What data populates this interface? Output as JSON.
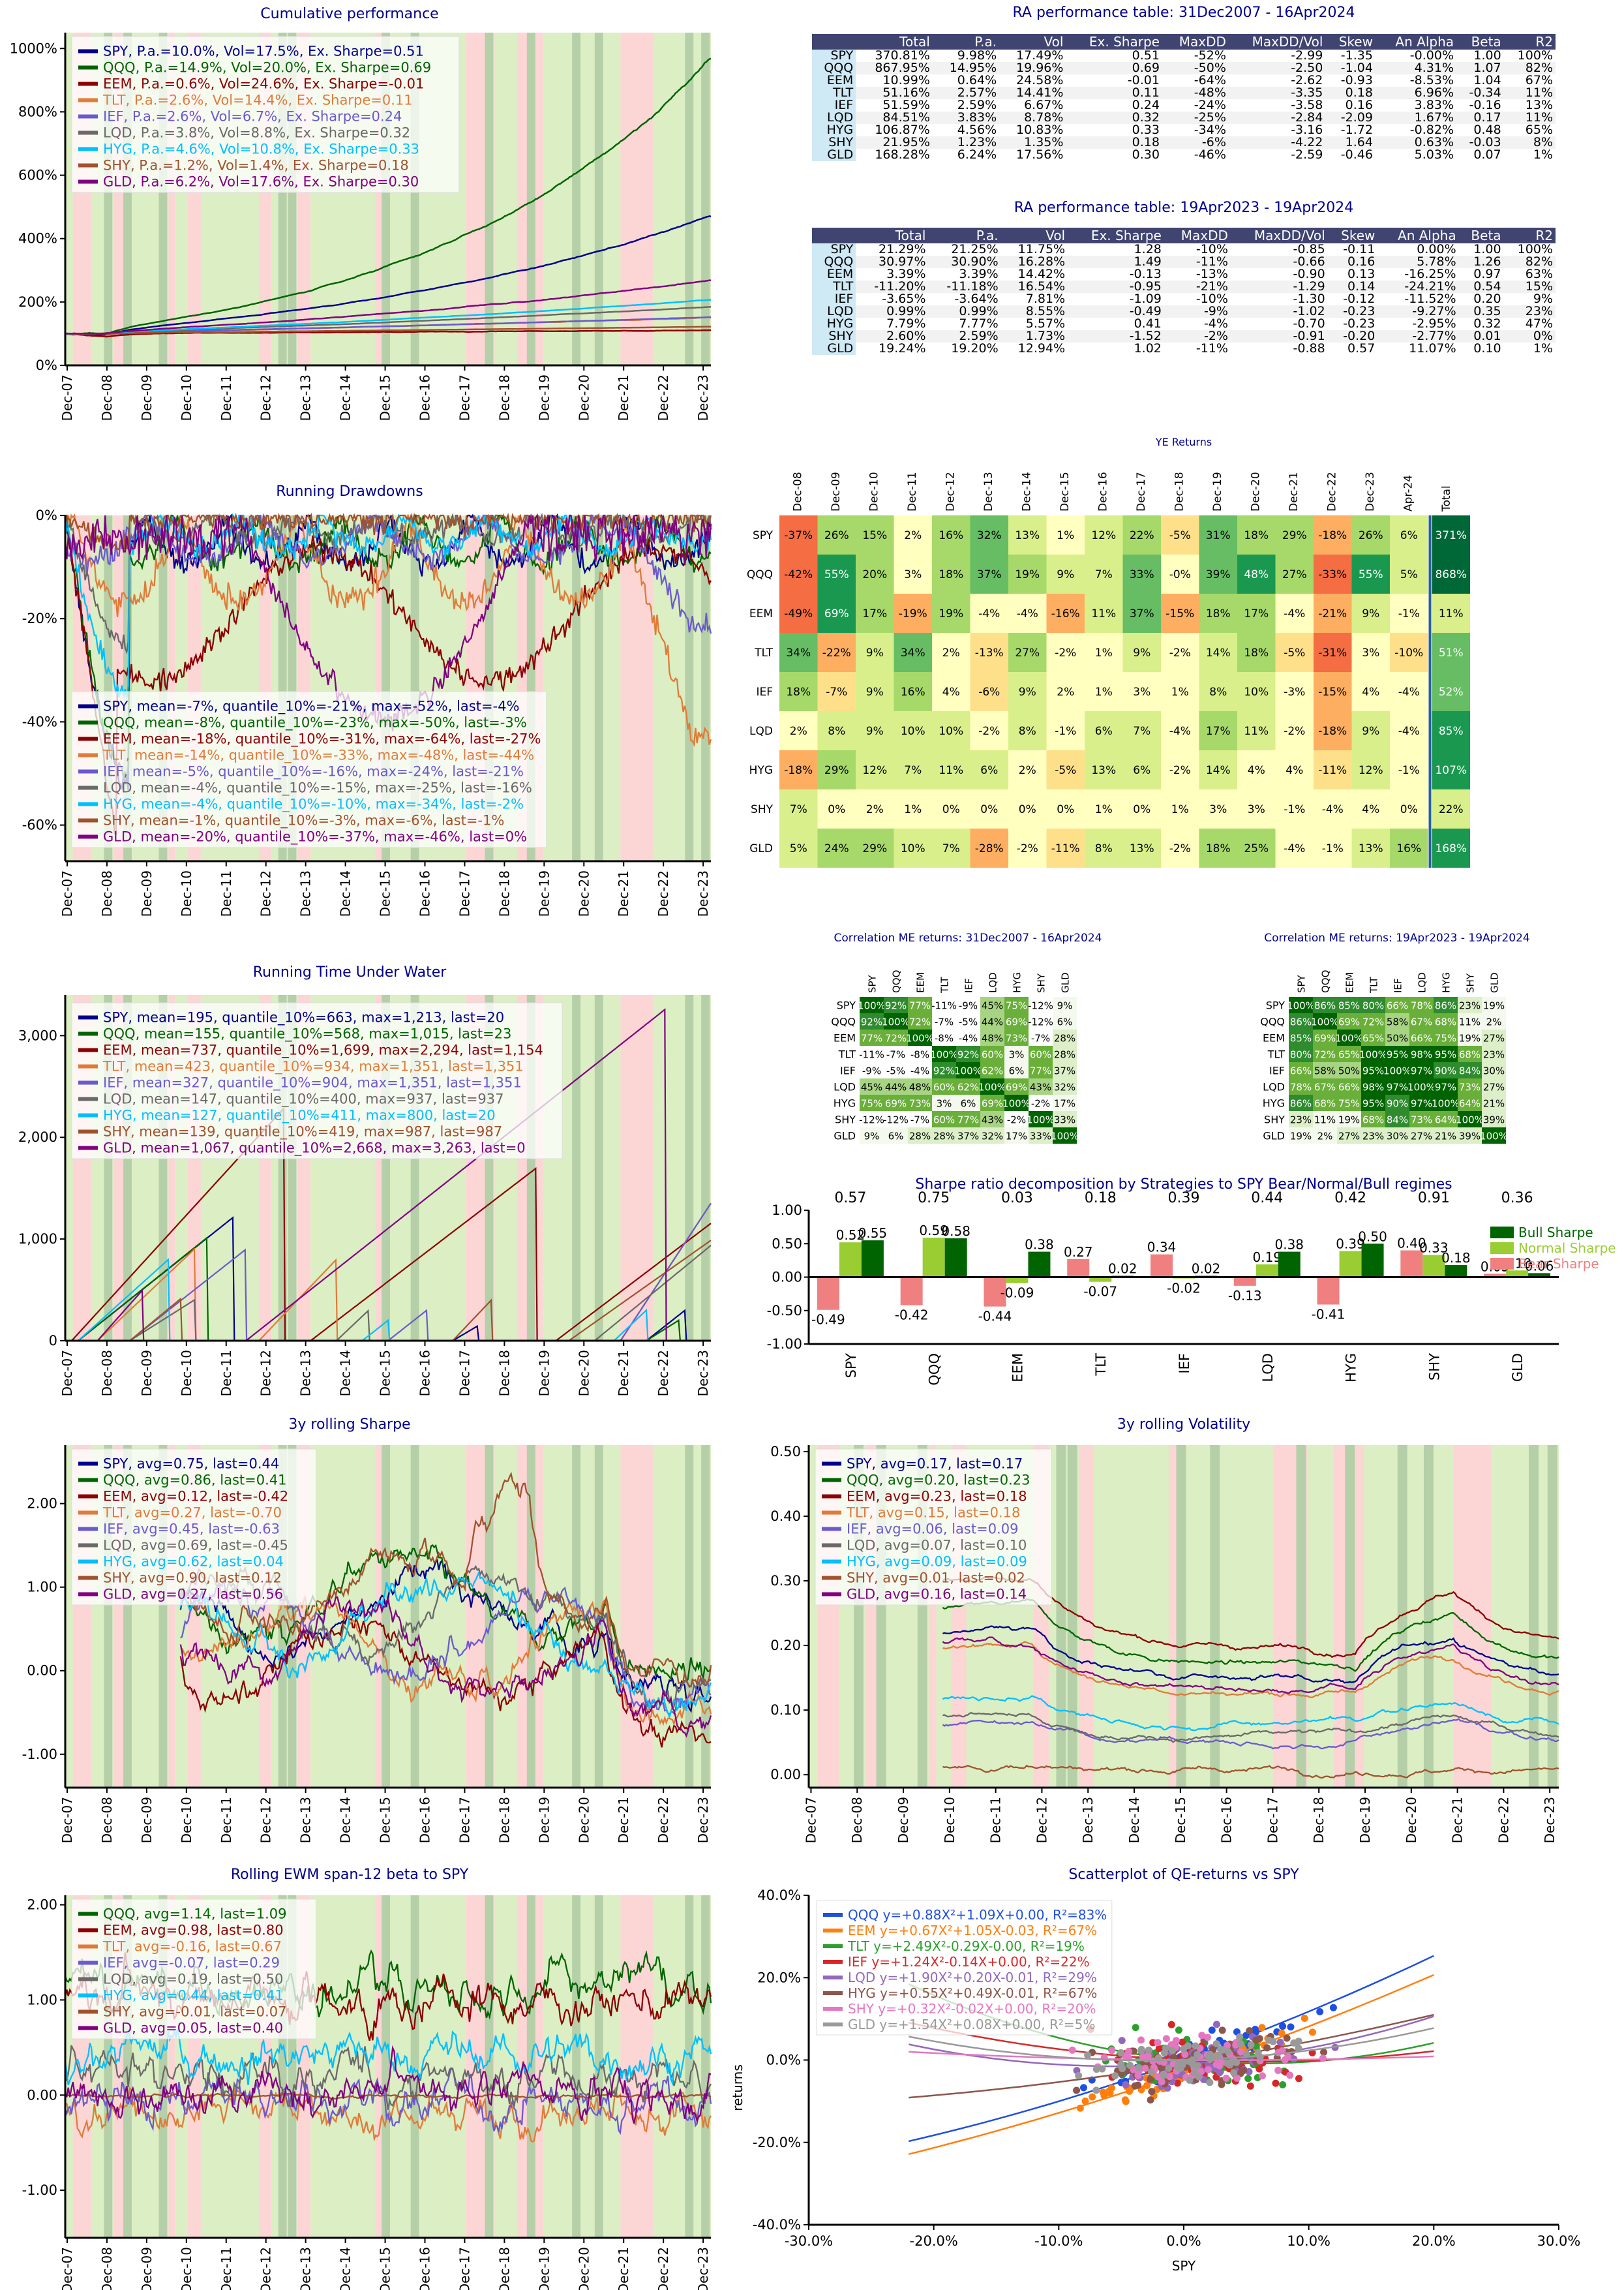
{
  "assets": [
    "SPY",
    "QQQ",
    "EEM",
    "TLT",
    "IEF",
    "LQD",
    "HYG",
    "SHY",
    "GLD"
  ],
  "colors": [
    "#00008b",
    "#006400",
    "#8b0000",
    "#e07b39",
    "#6a5acd",
    "#696969",
    "#00bfff",
    "#a0522d",
    "#800080"
  ],
  "time_ticks": [
    "Dec-07",
    "Dec-08",
    "Dec-09",
    "Dec-10",
    "Dec-11",
    "Dec-12",
    "Dec-13",
    "Dec-14",
    "Dec-15",
    "Dec-16",
    "Dec-17",
    "Dec-18",
    "Dec-19",
    "Dec-20",
    "Dec-21",
    "Dec-22",
    "Dec-23"
  ],
  "cumulative": {
    "title": "Cumulative performance",
    "yticks": [
      "0%",
      "200%",
      "400%",
      "600%",
      "800%",
      "1000%"
    ],
    "ylim": [
      0,
      1050
    ],
    "legend": [
      "SPY, P.a.=10.0%, Vol=17.5%, Ex. Sharpe=0.51",
      "QQQ, P.a.=14.9%, Vol=20.0%, Ex. Sharpe=0.69",
      "EEM, P.a.=0.6%, Vol=24.6%, Ex. Sharpe=-0.01",
      "TLT, P.a.=2.6%, Vol=14.4%, Ex. Sharpe=0.11",
      "IEF, P.a.=2.6%, Vol=6.7%, Ex. Sharpe=0.24",
      "LQD, P.a.=3.8%, Vol=8.8%, Ex. Sharpe=0.32",
      "HYG, P.a.=4.6%, Vol=10.8%, Ex. Sharpe=0.33",
      "SHY, P.a.=1.2%, Vol=1.4%, Ex. Sharpe=0.18",
      "GLD, P.a.=6.2%, Vol=17.6%, Ex. Sharpe=0.30"
    ],
    "final_values": [
      470,
      968,
      111,
      151,
      152,
      185,
      207,
      122,
      268
    ]
  },
  "table1": {
    "title": "RA performance table: 31Dec2007 - 16Apr2024",
    "headers": [
      "",
      "Total",
      "P.a.",
      "Vol",
      "Ex. Sharpe",
      "MaxDD",
      "MaxDD/Vol",
      "Skew",
      "An Alpha",
      "Beta",
      "R2"
    ],
    "rows": [
      [
        "SPY",
        "370.81%",
        "9.98%",
        "17.49%",
        "0.51",
        "-52%",
        "-2.99",
        "-1.35",
        "-0.00%",
        "1.00",
        "100%"
      ],
      [
        "QQQ",
        "867.95%",
        "14.95%",
        "19.96%",
        "0.69",
        "-50%",
        "-2.50",
        "-1.04",
        "4.31%",
        "1.07",
        "82%"
      ],
      [
        "EEM",
        "10.99%",
        "0.64%",
        "24.58%",
        "-0.01",
        "-64%",
        "-2.62",
        "-0.93",
        "-8.53%",
        "1.04",
        "67%"
      ],
      [
        "TLT",
        "51.16%",
        "2.57%",
        "14.41%",
        "0.11",
        "-48%",
        "-3.35",
        "0.18",
        "6.96%",
        "-0.34",
        "11%"
      ],
      [
        "IEF",
        "51.59%",
        "2.59%",
        "6.67%",
        "0.24",
        "-24%",
        "-3.58",
        "0.16",
        "3.83%",
        "-0.16",
        "13%"
      ],
      [
        "LQD",
        "84.51%",
        "3.83%",
        "8.78%",
        "0.32",
        "-25%",
        "-2.84",
        "-2.09",
        "1.67%",
        "0.17",
        "11%"
      ],
      [
        "HYG",
        "106.87%",
        "4.56%",
        "10.83%",
        "0.33",
        "-34%",
        "-3.16",
        "-1.72",
        "-0.82%",
        "0.48",
        "65%"
      ],
      [
        "SHY",
        "21.95%",
        "1.23%",
        "1.35%",
        "0.18",
        "-6%",
        "-4.22",
        "1.64",
        "0.63%",
        "-0.03",
        "8%"
      ],
      [
        "GLD",
        "168.28%",
        "6.24%",
        "17.56%",
        "0.30",
        "-46%",
        "-2.59",
        "-0.46",
        "5.03%",
        "0.07",
        "1%"
      ]
    ]
  },
  "table2": {
    "title": "RA performance table: 19Apr2023 - 19Apr2024",
    "headers": [
      "",
      "Total",
      "P.a.",
      "Vol",
      "Ex. Sharpe",
      "MaxDD",
      "MaxDD/Vol",
      "Skew",
      "An Alpha",
      "Beta",
      "R2"
    ],
    "rows": [
      [
        "SPY",
        "21.29%",
        "21.25%",
        "11.75%",
        "1.28",
        "-10%",
        "-0.85",
        "-0.11",
        "0.00%",
        "1.00",
        "100%"
      ],
      [
        "QQQ",
        "30.97%",
        "30.90%",
        "16.28%",
        "1.49",
        "-11%",
        "-0.66",
        "0.16",
        "5.78%",
        "1.26",
        "82%"
      ],
      [
        "EEM",
        "3.39%",
        "3.39%",
        "14.42%",
        "-0.13",
        "-13%",
        "-0.90",
        "0.13",
        "-16.25%",
        "0.97",
        "63%"
      ],
      [
        "TLT",
        "-11.20%",
        "-11.18%",
        "16.54%",
        "-0.95",
        "-21%",
        "-1.29",
        "0.14",
        "-24.21%",
        "0.54",
        "15%"
      ],
      [
        "IEF",
        "-3.65%",
        "-3.64%",
        "7.81%",
        "-1.09",
        "-10%",
        "-1.30",
        "-0.12",
        "-11.52%",
        "0.20",
        "9%"
      ],
      [
        "LQD",
        "0.99%",
        "0.99%",
        "8.55%",
        "-0.49",
        "-9%",
        "-1.02",
        "-0.23",
        "-9.27%",
        "0.35",
        "23%"
      ],
      [
        "HYG",
        "7.79%",
        "7.77%",
        "5.57%",
        "0.41",
        "-4%",
        "-0.70",
        "-0.23",
        "-2.95%",
        "0.32",
        "47%"
      ],
      [
        "SHY",
        "2.60%",
        "2.59%",
        "1.73%",
        "-1.52",
        "-2%",
        "-0.91",
        "-0.20",
        "-2.77%",
        "0.01",
        "0%"
      ],
      [
        "GLD",
        "19.24%",
        "19.20%",
        "12.94%",
        "1.02",
        "-11%",
        "-0.88",
        "0.57",
        "11.07%",
        "0.10",
        "1%"
      ]
    ]
  },
  "drawdowns": {
    "title": "Running Drawdowns",
    "yticks": [
      "0%",
      "-20%",
      "-40%",
      "-60%"
    ],
    "ylim": [
      -67,
      0
    ],
    "legend": [
      "SPY, mean=-7%, quantile_10%=-21%, max=-52%, last=-4%",
      "QQQ, mean=-8%, quantile_10%=-23%, max=-50%, last=-3%",
      "EEM, mean=-18%, quantile_10%=-31%, max=-64%, last=-27%",
      "TLT, mean=-14%, quantile_10%=-33%, max=-48%, last=-44%",
      "IEF, mean=-5%, quantile_10%=-16%, max=-24%, last=-21%",
      "LQD, mean=-4%, quantile_10%=-15%, max=-25%, last=-16%",
      "HYG, mean=-4%, quantile_10%=-10%, max=-34%, last=-2%",
      "SHY, mean=-1%, quantile_10%=-3%, max=-6%, last=-1%",
      "GLD, mean=-20%, quantile_10%=-37%, max=-46%, last=0%"
    ]
  },
  "ye_returns": {
    "title": "YE Returns",
    "columns": [
      "Dec-08",
      "Dec-09",
      "Dec-10",
      "Dec-11",
      "Dec-12",
      "Dec-13",
      "Dec-14",
      "Dec-15",
      "Dec-16",
      "Dec-17",
      "Dec-18",
      "Dec-19",
      "Dec-20",
      "Dec-21",
      "Dec-22",
      "Dec-23",
      "Apr-24",
      "Total"
    ],
    "rows": [
      [
        "SPY",
        "-37%",
        "26%",
        "15%",
        "2%",
        "16%",
        "32%",
        "13%",
        "1%",
        "12%",
        "22%",
        "-5%",
        "31%",
        "18%",
        "29%",
        "-18%",
        "26%",
        "6%",
        "371%"
      ],
      [
        "QQQ",
        "-42%",
        "55%",
        "20%",
        "3%",
        "18%",
        "37%",
        "19%",
        "9%",
        "7%",
        "33%",
        "-0%",
        "39%",
        "48%",
        "27%",
        "-33%",
        "55%",
        "5%",
        "868%"
      ],
      [
        "EEM",
        "-49%",
        "69%",
        "17%",
        "-19%",
        "19%",
        "-4%",
        "-4%",
        "-16%",
        "11%",
        "37%",
        "-15%",
        "18%",
        "17%",
        "-4%",
        "-21%",
        "9%",
        "-1%",
        "11%"
      ],
      [
        "TLT",
        "34%",
        "-22%",
        "9%",
        "34%",
        "2%",
        "-13%",
        "27%",
        "-2%",
        "1%",
        "9%",
        "-2%",
        "14%",
        "18%",
        "-5%",
        "-31%",
        "3%",
        "-10%",
        "51%"
      ],
      [
        "IEF",
        "18%",
        "-7%",
        "9%",
        "16%",
        "4%",
        "-6%",
        "9%",
        "2%",
        "1%",
        "3%",
        "1%",
        "8%",
        "10%",
        "-3%",
        "-15%",
        "4%",
        "-4%",
        "52%"
      ],
      [
        "LQD",
        "2%",
        "8%",
        "9%",
        "10%",
        "10%",
        "-2%",
        "8%",
        "-1%",
        "6%",
        "7%",
        "-4%",
        "17%",
        "11%",
        "-2%",
        "-18%",
        "9%",
        "-4%",
        "85%"
      ],
      [
        "HYG",
        "-18%",
        "29%",
        "12%",
        "7%",
        "11%",
        "6%",
        "2%",
        "-5%",
        "13%",
        "6%",
        "-2%",
        "14%",
        "4%",
        "4%",
        "-11%",
        "12%",
        "-1%",
        "107%"
      ],
      [
        "SHY",
        "7%",
        "0%",
        "2%",
        "1%",
        "0%",
        "0%",
        "0%",
        "0%",
        "1%",
        "0%",
        "1%",
        "3%",
        "3%",
        "-1%",
        "-4%",
        "4%",
        "0%",
        "22%"
      ],
      [
        "GLD",
        "5%",
        "24%",
        "29%",
        "10%",
        "7%",
        "-28%",
        "-2%",
        "-11%",
        "8%",
        "13%",
        "-2%",
        "18%",
        "25%",
        "-4%",
        "-1%",
        "13%",
        "16%",
        "168%"
      ]
    ]
  },
  "tuw": {
    "title": "Running Time Under Water",
    "yticks": [
      "0",
      "1,000",
      "2,000",
      "3,000"
    ],
    "ylim": [
      0,
      3400
    ],
    "legend": [
      "SPY, mean=195, quantile_10%=663, max=1,213, last=20",
      "QQQ, mean=155, quantile_10%=568, max=1,015, last=23",
      "EEM, mean=737, quantile_10%=1,699, max=2,294, last=1,154",
      "TLT, mean=423, quantile_10%=934, max=1,351, last=1,351",
      "IEF, mean=327, quantile_10%=904, max=1,351, last=1,351",
      "LQD, mean=147, quantile_10%=400, max=937, last=937",
      "HYG, mean=127, quantile_10%=411, max=800, last=20",
      "SHY, mean=139, quantile_10%=419, max=987, last=987",
      "GLD, mean=1,067, quantile_10%=2,668, max=3,263, last=0"
    ]
  },
  "corr1": {
    "title": "Correlation ME returns: 31Dec2007 - 16Apr2024",
    "matrix": [
      [
        "100%",
        "92%",
        "77%",
        "-11%",
        "-9%",
        "45%",
        "75%",
        "-12%",
        "9%"
      ],
      [
        "92%",
        "100%",
        "72%",
        "-7%",
        "-5%",
        "44%",
        "69%",
        "-12%",
        "6%"
      ],
      [
        "77%",
        "72%",
        "100%",
        "-8%",
        "-4%",
        "48%",
        "73%",
        "-7%",
        "28%"
      ],
      [
        "-11%",
        "-7%",
        "-8%",
        "100%",
        "92%",
        "60%",
        "3%",
        "60%",
        "28%"
      ],
      [
        "-9%",
        "-5%",
        "-4%",
        "92%",
        "100%",
        "62%",
        "6%",
        "77%",
        "37%"
      ],
      [
        "45%",
        "44%",
        "48%",
        "60%",
        "62%",
        "100%",
        "69%",
        "43%",
        "32%"
      ],
      [
        "75%",
        "69%",
        "73%",
        "3%",
        "6%",
        "69%",
        "100%",
        "-2%",
        "17%"
      ],
      [
        "-12%",
        "-12%",
        "-7%",
        "60%",
        "77%",
        "43%",
        "-2%",
        "100%",
        "33%"
      ],
      [
        "9%",
        "6%",
        "28%",
        "28%",
        "37%",
        "32%",
        "17%",
        "33%",
        "100%"
      ]
    ]
  },
  "corr2": {
    "title": "Correlation ME returns: 19Apr2023 - 19Apr2024",
    "matrix": [
      [
        "100%",
        "86%",
        "85%",
        "80%",
        "66%",
        "78%",
        "86%",
        "23%",
        "19%"
      ],
      [
        "86%",
        "100%",
        "69%",
        "72%",
        "58%",
        "67%",
        "68%",
        "11%",
        "2%"
      ],
      [
        "85%",
        "69%",
        "100%",
        "65%",
        "50%",
        "66%",
        "75%",
        "19%",
        "27%"
      ],
      [
        "80%",
        "72%",
        "65%",
        "100%",
        "95%",
        "98%",
        "95%",
        "68%",
        "23%"
      ],
      [
        "66%",
        "58%",
        "50%",
        "95%",
        "100%",
        "97%",
        "90%",
        "84%",
        "30%"
      ],
      [
        "78%",
        "67%",
        "66%",
        "98%",
        "97%",
        "100%",
        "97%",
        "73%",
        "27%"
      ],
      [
        "86%",
        "68%",
        "75%",
        "95%",
        "90%",
        "97%",
        "100%",
        "64%",
        "21%"
      ],
      [
        "23%",
        "11%",
        "19%",
        "68%",
        "84%",
        "73%",
        "64%",
        "100%",
        "39%"
      ],
      [
        "19%",
        "2%",
        "27%",
        "23%",
        "30%",
        "27%",
        "21%",
        "39%",
        "100%"
      ]
    ]
  },
  "sharpe_decomp": {
    "title": "Sharpe ratio decomposition by Strategies to SPY Bear/Normal/Bull regimes",
    "totals": [
      "0.57",
      "0.75",
      "0.03",
      "0.18",
      "0.39",
      "0.44",
      "0.42",
      "0.91",
      "0.36"
    ],
    "bear": [
      -0.49,
      -0.42,
      -0.44,
      0.27,
      0.34,
      -0.13,
      -0.41,
      0.4,
      0.05
    ],
    "normal": [
      0.52,
      0.59,
      -0.09,
      -0.07,
      -0.02,
      0.19,
      0.39,
      0.33,
      0.1
    ],
    "bull": [
      0.55,
      0.58,
      0.38,
      0.02,
      0.02,
      0.38,
      0.5,
      0.18,
      0.06
    ],
    "yticks": [
      "1.00",
      "0.50",
      "0.00",
      "-0.50",
      "-1.00"
    ],
    "ylim": [
      -1,
      1
    ],
    "legend": [
      "Bull Sharpe",
      "Normal Sharpe",
      "Bear Sharpe"
    ],
    "legend_colors": [
      "#006400",
      "#9acd32",
      "#f08080"
    ]
  },
  "rolling_sharpe": {
    "title": "3y rolling Sharpe",
    "yticks": [
      "2.00",
      "1.00",
      "0.00",
      "-1.00"
    ],
    "ylim": [
      -1.4,
      2.7
    ],
    "legend": [
      "SPY, avg=0.75, last=0.44",
      "QQQ, avg=0.86, last=0.41",
      "EEM, avg=0.12, last=-0.42",
      "TLT, avg=0.27, last=-0.70",
      "IEF, avg=0.45, last=-0.63",
      "LQD, avg=0.69, last=-0.45",
      "HYG, avg=0.62, last=0.04",
      "SHY, avg=0.90, last=0.12",
      "GLD, avg=0.27, last=0.56"
    ]
  },
  "rolling_vol": {
    "title": "3y rolling Volatility",
    "yticks": [
      "0.50",
      "0.40",
      "0.30",
      "0.20",
      "0.10",
      "0.00"
    ],
    "ylim": [
      -0.02,
      0.51
    ],
    "legend": [
      "SPY, avg=0.17, last=0.17",
      "QQQ, avg=0.20, last=0.23",
      "EEM, avg=0.23, last=0.18",
      "TLT, avg=0.15, last=0.18",
      "IEF, avg=0.06, last=0.09",
      "LQD, avg=0.07, last=0.10",
      "HYG, avg=0.09, last=0.09",
      "SHY, avg=0.01, last=0.02",
      "GLD, avg=0.16, last=0.14"
    ]
  },
  "rolling_beta": {
    "title": "Rolling EWM span-12 beta to SPY",
    "yticks": [
      "2.00",
      "1.00",
      "0.00",
      "-1.00"
    ],
    "ylim": [
      -1.5,
      2.1
    ],
    "legend": [
      "QQQ, avg=1.14, last=1.09",
      "EEM, avg=0.98, last=0.80",
      "TLT, avg=-0.16, last=0.67",
      "IEF, avg=-0.07, last=0.29",
      "LQD, avg=0.19, last=0.50",
      "HYG, avg=0.44, last=0.41",
      "SHY, avg=-0.01, last=0.07",
      "GLD, avg=0.05, last=0.40"
    ]
  },
  "scatter": {
    "title": "Scatterplot of QE-returns vs SPY",
    "xlabel": "SPY",
    "ylabel": "returns",
    "xticks": [
      "-30.0%",
      "-20.0%",
      "-10.0%",
      "0.0%",
      "10.0%",
      "20.0%",
      "30.0%"
    ],
    "yticks": [
      "40.0%",
      "20.0%",
      "0.0%",
      "-20.0%",
      "-40.0%"
    ],
    "xlim": [
      -30,
      30
    ],
    "ylim": [
      -40,
      40
    ],
    "legend": [
      "QQQ  y=+0.88X²+1.09X+0.00, R²=83%",
      "EEM  y=+0.67X²+1.05X-0.03, R²=67%",
      "TLT  y=+2.49X²-0.29X-0.00, R²=19%",
      "IEF  y=+1.24X²-0.14X+0.00, R²=22%",
      "LQD  y=+1.90X²+0.20X-0.01, R²=29%",
      "HYG  y=+0.55X²+0.49X-0.01, R²=67%",
      "SHY  y=+0.32X²-0.02X+0.00, R²=20%",
      "GLD  y=+1.54X²+0.08X+0.00, R²=5%"
    ],
    "colors": [
      "#1f4fe0",
      "#ff7f0e",
      "#2ca02c",
      "#d62728",
      "#9467bd",
      "#8c564b",
      "#e377c2",
      "#999999"
    ],
    "fits": [
      [
        0.88,
        1.09,
        0.0
      ],
      [
        0.67,
        1.05,
        -0.03
      ],
      [
        2.49,
        -0.29,
        0.0
      ],
      [
        1.24,
        -0.14,
        0.0
      ],
      [
        1.9,
        0.2,
        -0.01
      ],
      [
        0.55,
        0.49,
        -0.01
      ],
      [
        0.32,
        -0.02,
        0.0
      ],
      [
        1.54,
        0.08,
        0.0
      ]
    ]
  }
}
